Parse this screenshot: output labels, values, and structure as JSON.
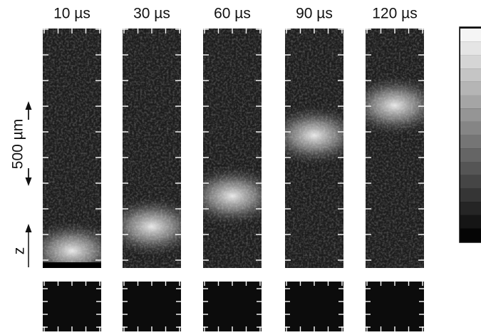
{
  "panels": [
    {
      "label": "10 µs"
    },
    {
      "label": "30 µs"
    },
    {
      "label": "60 µs"
    },
    {
      "label": "90 µs"
    },
    {
      "label": "120 µs"
    }
  ],
  "scale_bar": {
    "label": "500 µm"
  },
  "axis": {
    "label": "z"
  }
}
